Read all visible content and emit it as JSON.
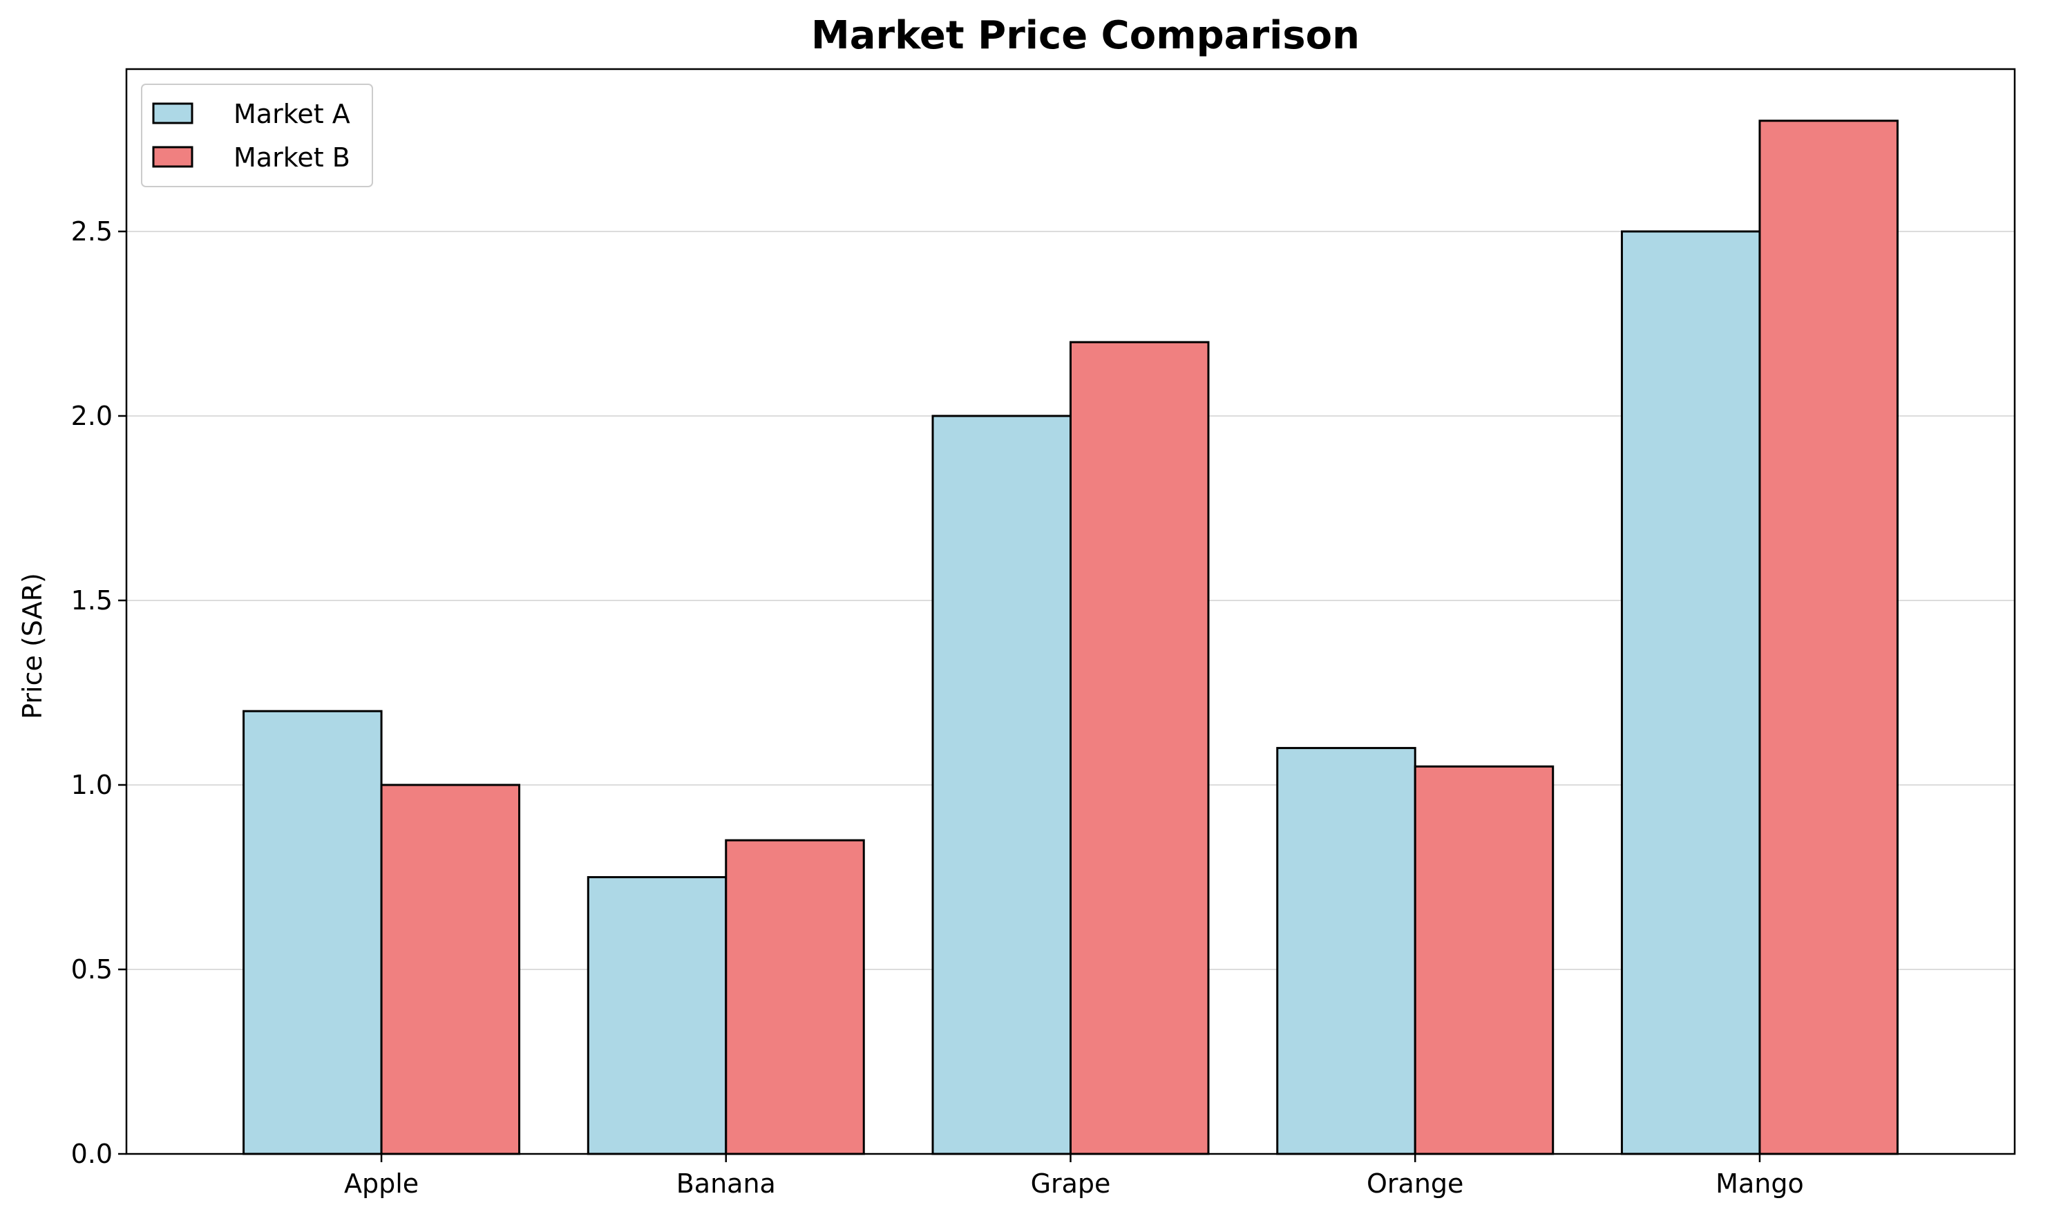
{
  "chart_data": {
    "type": "bar",
    "title": "Market Price Comparison",
    "xlabel": "",
    "ylabel": "Price (SAR)",
    "categories": [
      "Apple",
      "Banana",
      "Grape",
      "Orange",
      "Mango"
    ],
    "series": [
      {
        "name": "Market A",
        "values": [
          1.2,
          0.75,
          2.0,
          1.1,
          2.5
        ],
        "color": "#add8e6"
      },
      {
        "name": "Market B",
        "values": [
          1.0,
          0.85,
          2.2,
          1.05,
          2.8
        ],
        "color": "#f08080"
      }
    ],
    "ylim": [
      0,
      2.94
    ],
    "yticks": [
      {
        "value": 0.0,
        "label": "0.0"
      },
      {
        "value": 0.5,
        "label": "0.5"
      },
      {
        "value": 1.0,
        "label": "1.0"
      },
      {
        "value": 1.5,
        "label": "1.5"
      },
      {
        "value": 2.0,
        "label": "2.0"
      },
      {
        "value": 2.5,
        "label": "2.5"
      }
    ],
    "grid": "y-major",
    "legend_position": "upper-left"
  }
}
